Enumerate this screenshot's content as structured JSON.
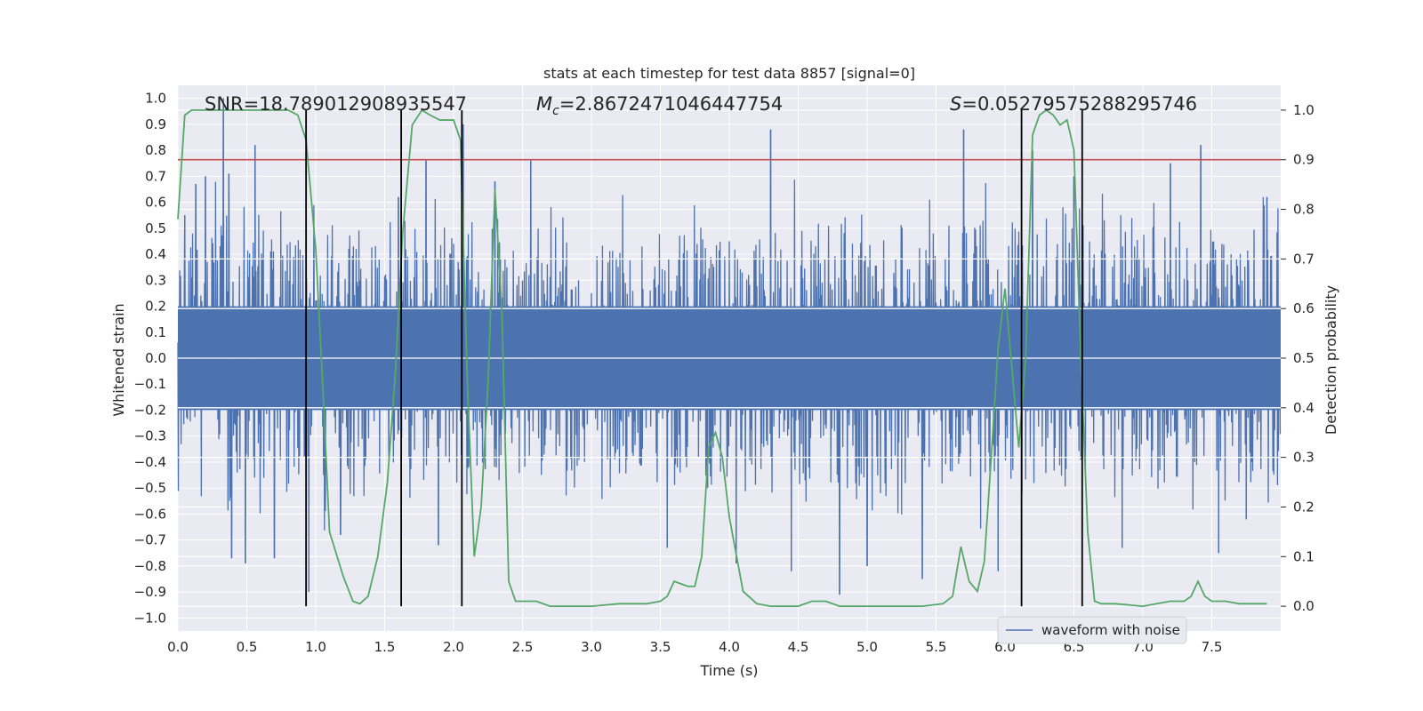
{
  "chart_data": {
    "type": "line",
    "title": "stats at each timestep for test data 8857 [signal=0]",
    "xlabel": "Time (s)",
    "ylabel_left": "Whitened strain",
    "ylabel_right": "Detection probability",
    "xlim": [
      0.0,
      8.0
    ],
    "ylim_left": [
      -1.05,
      1.05
    ],
    "ylim_right": [
      -0.05,
      1.05
    ],
    "x_ticks": [
      "0.0",
      "0.5",
      "1.0",
      "1.5",
      "2.0",
      "2.5",
      "3.0",
      "3.5",
      "4.0",
      "4.5",
      "5.0",
      "5.5",
      "6.0",
      "6.5",
      "7.0",
      "7.5"
    ],
    "y_left_ticks": [
      "1.0",
      "0.9",
      "0.8",
      "0.7",
      "0.6",
      "0.5",
      "0.4",
      "0.3",
      "0.2",
      "0.1",
      "0.0",
      "−0.1",
      "−0.2",
      "−0.3",
      "−0.4",
      "−0.5",
      "−0.6",
      "−0.7",
      "−0.8",
      "−0.9",
      "−1.0"
    ],
    "y_right_ticks": [
      "1.0",
      "0.9",
      "0.8",
      "0.7",
      "0.6",
      "0.5",
      "0.4",
      "0.3",
      "0.2",
      "0.1",
      "0.0"
    ],
    "grid": true,
    "legend": {
      "position": "lower-right",
      "entries": [
        "waveform with noise"
      ]
    },
    "annotations": {
      "snr": "SNR=18.789012908935547",
      "mc_symbol": "M",
      "mc_subscript": "c",
      "mc_value": "=2.8672471046447754",
      "s_symbol": "S",
      "s_value": "=0.05279575288295746"
    },
    "threshold_right": 0.9,
    "vertical_markers": [
      0.93,
      1.62,
      2.06,
      6.12,
      6.56
    ],
    "waveform_envelope": {
      "typical_peak": 0.45,
      "max_peak": 1.0,
      "min_trough": -0.93
    },
    "waveform_spikes": [
      [
        0.05,
        0.55
      ],
      [
        0.13,
        0.67
      ],
      [
        0.2,
        0.7
      ],
      [
        0.33,
        1.0
      ],
      [
        0.37,
        0.71
      ],
      [
        0.56,
        0.82
      ],
      [
        0.39,
        -0.77
      ],
      [
        0.49,
        -0.79
      ],
      [
        0.7,
        -0.77
      ],
      [
        0.95,
        -0.9
      ],
      [
        1.18,
        -0.68
      ],
      [
        1.6,
        0.62
      ],
      [
        1.8,
        0.76
      ],
      [
        1.89,
        -0.72
      ],
      [
        2.07,
        0.9
      ],
      [
        2.3,
        0.68
      ],
      [
        2.56,
        0.76
      ],
      [
        3.55,
        -0.73
      ],
      [
        4.05,
        -0.79
      ],
      [
        4.3,
        0.88
      ],
      [
        4.45,
        -0.82
      ],
      [
        4.8,
        -0.91
      ],
      [
        5.0,
        -0.8
      ],
      [
        5.4,
        -0.85
      ],
      [
        5.7,
        0.88
      ],
      [
        5.95,
        -0.82
      ],
      [
        6.2,
        0.8
      ],
      [
        6.5,
        0.7
      ],
      [
        6.85,
        -0.73
      ],
      [
        7.2,
        0.75
      ],
      [
        7.42,
        0.82
      ],
      [
        7.55,
        -0.75
      ],
      [
        7.75,
        -0.62
      ],
      [
        7.9,
        0.62
      ]
    ],
    "detection_probability": {
      "x": [
        0.0,
        0.05,
        0.1,
        0.2,
        0.3,
        0.5,
        0.7,
        0.8,
        0.87,
        0.93,
        1.0,
        1.05,
        1.1,
        1.2,
        1.27,
        1.32,
        1.38,
        1.45,
        1.52,
        1.58,
        1.63,
        1.7,
        1.77,
        1.83,
        1.9,
        2.0,
        2.05,
        2.1,
        2.15,
        2.2,
        2.25,
        2.3,
        2.35,
        2.4,
        2.45,
        2.5,
        2.6,
        2.7,
        2.8,
        3.0,
        3.2,
        3.4,
        3.5,
        3.55,
        3.6,
        3.7,
        3.75,
        3.8,
        3.85,
        3.9,
        3.95,
        4.0,
        4.1,
        4.2,
        4.3,
        4.5,
        4.6,
        4.7,
        4.8,
        5.0,
        5.2,
        5.4,
        5.55,
        5.62,
        5.68,
        5.74,
        5.8,
        5.85,
        5.9,
        5.95,
        6.0,
        6.05,
        6.1,
        6.15,
        6.2,
        6.25,
        6.3,
        6.35,
        6.4,
        6.45,
        6.5,
        6.55,
        6.6,
        6.65,
        6.7,
        6.8,
        7.0,
        7.1,
        7.2,
        7.3,
        7.35,
        7.4,
        7.45,
        7.5,
        7.6,
        7.7,
        7.8,
        7.9
      ],
      "y": [
        0.78,
        0.99,
        1.0,
        1.0,
        1.0,
        1.0,
        1.0,
        1.0,
        0.99,
        0.94,
        0.72,
        0.45,
        0.15,
        0.06,
        0.01,
        0.005,
        0.02,
        0.1,
        0.25,
        0.48,
        0.75,
        0.97,
        1.0,
        0.99,
        0.98,
        0.98,
        0.94,
        0.45,
        0.1,
        0.2,
        0.45,
        0.84,
        0.6,
        0.05,
        0.01,
        0.01,
        0.01,
        0.0,
        0.0,
        0.0,
        0.005,
        0.005,
        0.01,
        0.02,
        0.05,
        0.04,
        0.04,
        0.1,
        0.32,
        0.35,
        0.3,
        0.18,
        0.03,
        0.005,
        0.0,
        0.0,
        0.01,
        0.01,
        0.0,
        0.0,
        0.0,
        0.0,
        0.005,
        0.02,
        0.12,
        0.05,
        0.03,
        0.09,
        0.3,
        0.52,
        0.64,
        0.48,
        0.32,
        0.5,
        0.95,
        0.99,
        1.0,
        0.99,
        0.97,
        0.98,
        0.92,
        0.5,
        0.15,
        0.01,
        0.005,
        0.005,
        0.0,
        0.005,
        0.01,
        0.01,
        0.02,
        0.05,
        0.02,
        0.01,
        0.01,
        0.005,
        0.005,
        0.005
      ]
    },
    "colors": {
      "waveform": "#4c72b0",
      "probability": "#55a868",
      "threshold": "#c44e52",
      "markers": "#000000",
      "plot_background": "#eaeaf2",
      "grid": "#ffffff"
    }
  }
}
